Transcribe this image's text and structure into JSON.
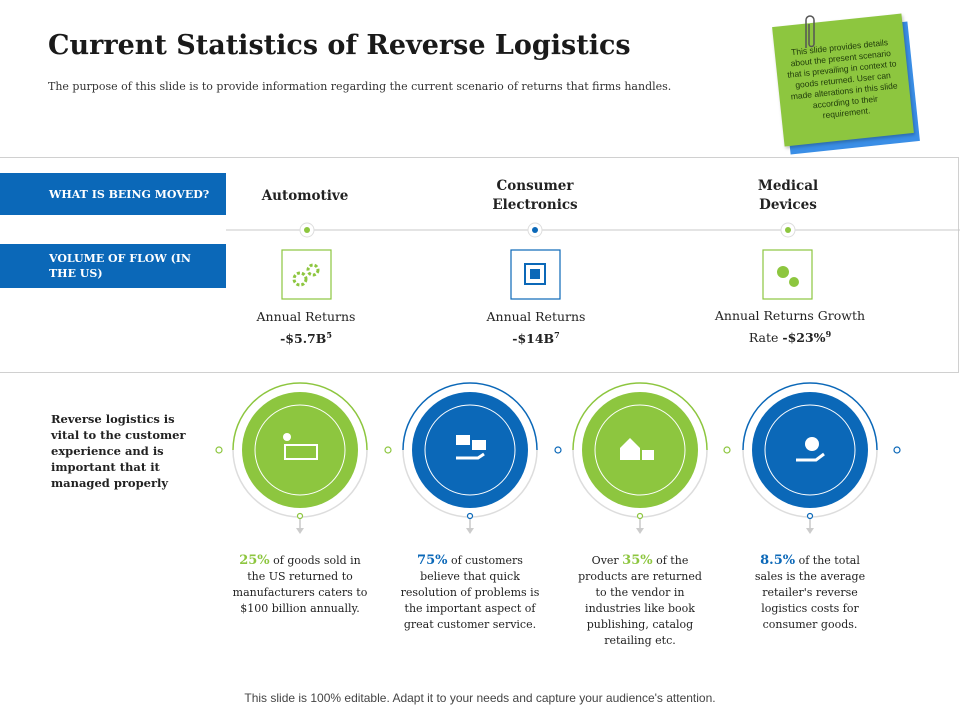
{
  "header": {
    "title": "Current Statistics of Reverse Logistics",
    "subtitle": "The purpose of this slide is to provide information regarding  the current  scenario of returns  that firms handles."
  },
  "note": "This slide provides details about the present scenario that is prevailing in context to goods returned. User can made alterations in this slide according to their requirement.",
  "rows": [
    "WHAT  IS BEING MOVED?",
    "VOLUME OF FLOW (IN THE US)"
  ],
  "columns": [
    {
      "heading": "Automotive",
      "label": "Annual Returns",
      "value": "-$5.7B",
      "ref": "5"
    },
    {
      "heading": "Consumer Electronics",
      "label": "Annual Returns",
      "value": "-$14B",
      "ref": "7"
    },
    {
      "heading": "Medical Devices",
      "label": "Annual Returns Growth Rate",
      "value": "-$23%",
      "ref": "9"
    }
  ],
  "side_text": "Reverse logistics is vital to the customer experience and is important that it managed properly",
  "stats": [
    {
      "highlight": "25%",
      "after": " of goods sold in the US returned to manufacturers caters to $100 billion annually."
    },
    {
      "highlight": "75%",
      "after": " of customers believe that quick resolution of problems is the important aspect of great customer service."
    },
    {
      "before": "Over ",
      "highlight": "35%",
      "after": " of the products are returned to the vendor in industries like book publishing, catalog retailing etc."
    },
    {
      "highlight": "8.5%",
      "after": " of the total sales is the average retailer's reverse logistics costs for consumer goods."
    }
  ],
  "footer": "This slide is 100% editable. Adapt it to your needs and capture your audience's attention."
}
